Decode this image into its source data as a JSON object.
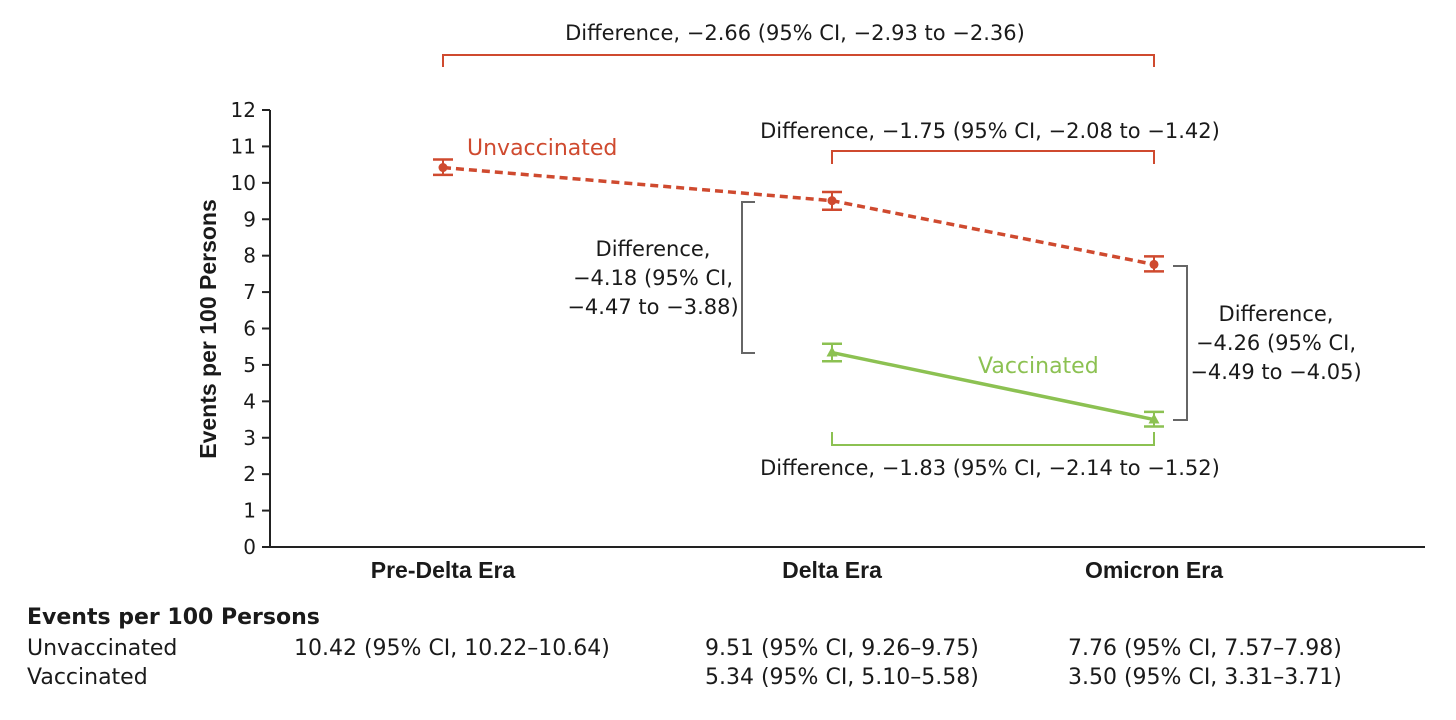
{
  "chart_data": {
    "type": "line",
    "title": "",
    "xlabel": "",
    "ylabel": "Events per 100 Persons",
    "categories": [
      "Pre-Delta Era",
      "Delta Era",
      "Omicron Era"
    ],
    "ylim": [
      0,
      12
    ],
    "yticks": [
      "0",
      "1",
      "2",
      "3",
      "4",
      "5",
      "6",
      "7",
      "8",
      "9",
      "10",
      "11",
      "12"
    ],
    "grid": false,
    "series": [
      {
        "name": "Unvaccinated",
        "color": "#cf4a2f",
        "line_style": "dashed",
        "marker": "circle",
        "values": [
          10.42,
          9.51,
          7.76
        ],
        "ci_low": [
          10.22,
          9.26,
          7.57
        ],
        "ci_high": [
          10.64,
          9.75,
          7.98
        ]
      },
      {
        "name": "Vaccinated",
        "color": "#8cc152",
        "line_style": "solid",
        "marker": "triangle",
        "values": [
          null,
          5.34,
          3.5
        ],
        "ci_low": [
          null,
          5.1,
          3.31
        ],
        "ci_high": [
          null,
          5.58,
          3.71
        ]
      }
    ],
    "annotations": {
      "top": "Difference, −2.66 (95% CI, −2.93 to −2.36)",
      "unvac_delta_omicron": "Difference, −1.75 (95% CI, −2.08 to −1.42)",
      "vac_delta_omicron": "Difference, −1.83 (95% CI, −2.14 to −1.52)",
      "delta_gap": [
        "Difference,",
        "−4.18 (95% CI,",
        "−4.47 to −3.88)"
      ],
      "omicron_gap": [
        "Difference,",
        "−4.26 (95% CI,",
        "−4.49 to −4.05)"
      ]
    }
  },
  "table": {
    "title": "Events per 100 Persons",
    "rows": [
      {
        "label": "Unvaccinated",
        "values": [
          "10.42 (95% CI, 10.22–10.64)",
          "9.51 (95% CI, 9.26–9.75)",
          "7.76 (95% CI, 7.57–7.98)"
        ]
      },
      {
        "label": "Vaccinated",
        "values": [
          "",
          "5.34 (95% CI, 5.10–5.58)",
          "3.50 (95% CI, 3.31–3.71)"
        ]
      }
    ]
  }
}
